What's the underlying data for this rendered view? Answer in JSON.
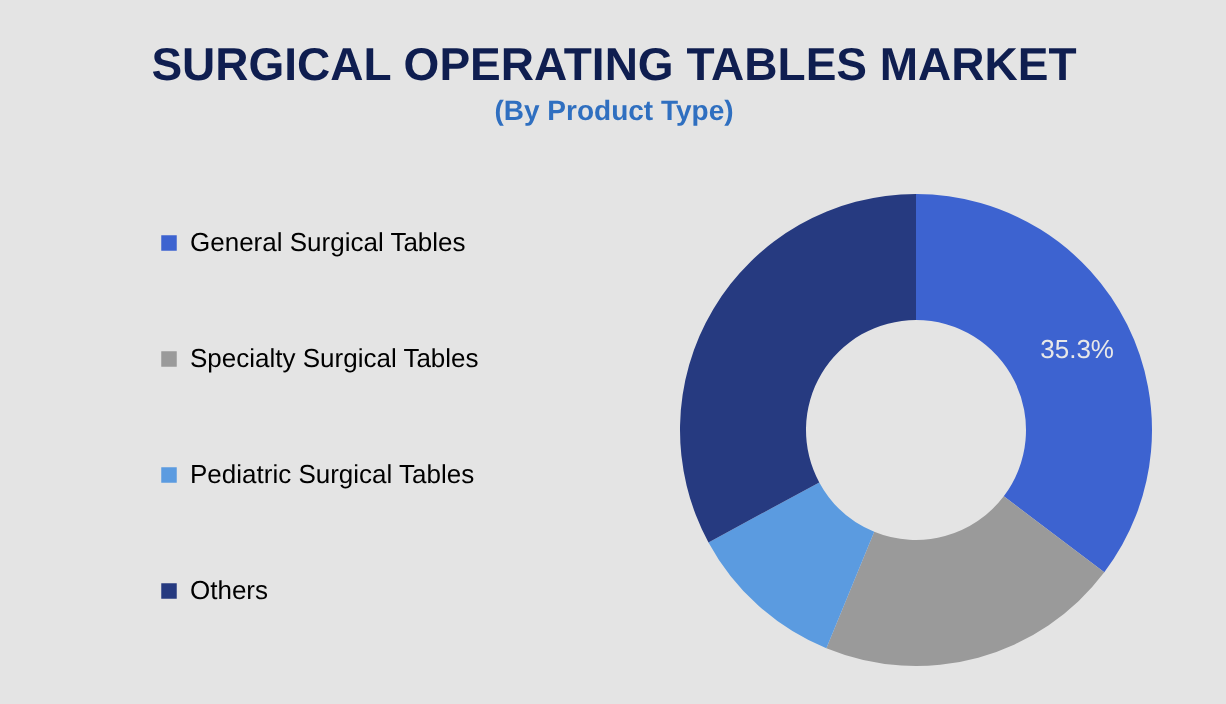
{
  "chart_data": {
    "type": "donut",
    "title": "SURGICAL OPERATING TABLES MARKET",
    "subtitle": "(By Product Type)",
    "categories": [
      "General Surgical Tables",
      "Specialty Surgical Tables",
      "Pediatric Surgical Tables",
      "Others"
    ],
    "values": [
      35.3,
      20.9,
      10.9,
      32.9
    ],
    "colors": [
      "#3d63d0",
      "#9a9a9a",
      "#5b9be0",
      "#263a80"
    ],
    "value_labels": [
      "35.3%",
      null,
      null,
      null
    ],
    "legend": "left"
  }
}
